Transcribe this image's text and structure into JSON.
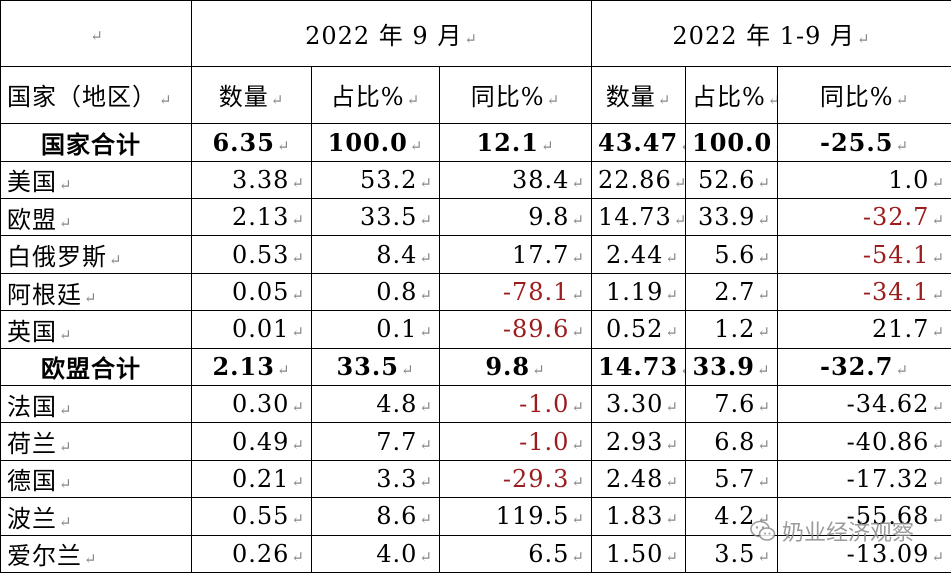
{
  "table": {
    "corner": "",
    "period_groups": [
      "2022 年 9 月",
      "2022 年 1-9 月"
    ],
    "columns": [
      "国家（地区）",
      "数量",
      "占比%",
      "同比%",
      "数量",
      "占比%",
      "同比%"
    ],
    "rows": [
      {
        "name": "国家合计",
        "subtotal": true,
        "cells": [
          "6.35",
          "100.0",
          "12.1",
          "43.47",
          "100.0",
          "-25.5"
        ],
        "neg": [
          false,
          false,
          false,
          false,
          false,
          false
        ]
      },
      {
        "name": "美国",
        "subtotal": false,
        "cells": [
          "3.38",
          "53.2",
          "38.4",
          "22.86",
          "52.6",
          "1.0"
        ],
        "neg": [
          false,
          false,
          false,
          false,
          false,
          false
        ]
      },
      {
        "name": "欧盟",
        "subtotal": false,
        "cells": [
          "2.13",
          "33.5",
          "9.8",
          "14.73",
          "33.9",
          "-32.7"
        ],
        "neg": [
          false,
          false,
          false,
          false,
          false,
          true
        ]
      },
      {
        "name": "白俄罗斯",
        "subtotal": false,
        "cells": [
          "0.53",
          "8.4",
          "17.7",
          "2.44",
          "5.6",
          "-54.1"
        ],
        "neg": [
          false,
          false,
          false,
          false,
          false,
          true
        ]
      },
      {
        "name": "阿根廷",
        "subtotal": false,
        "cells": [
          "0.05",
          "0.8",
          "-78.1",
          "1.19",
          "2.7",
          "-34.1"
        ],
        "neg": [
          false,
          false,
          true,
          false,
          false,
          true
        ]
      },
      {
        "name": "英国",
        "subtotal": false,
        "cells": [
          "0.01",
          "0.1",
          "-89.6",
          "0.52",
          "1.2",
          "21.7"
        ],
        "neg": [
          false,
          false,
          true,
          false,
          false,
          false
        ]
      },
      {
        "name": "欧盟合计",
        "subtotal": true,
        "cells": [
          "2.13",
          "33.5",
          "9.8",
          "14.73",
          "33.9",
          "-32.7"
        ],
        "neg": [
          false,
          false,
          false,
          false,
          false,
          false
        ]
      },
      {
        "name": "法国",
        "subtotal": false,
        "cells": [
          "0.30",
          "4.8",
          "-1.0",
          "3.30",
          "7.6",
          "-34.62"
        ],
        "neg": [
          false,
          false,
          true,
          false,
          false,
          false
        ]
      },
      {
        "name": "荷兰",
        "subtotal": false,
        "cells": [
          "0.49",
          "7.7",
          "-1.0",
          "2.93",
          "6.8",
          "-40.86"
        ],
        "neg": [
          false,
          false,
          true,
          false,
          false,
          false
        ]
      },
      {
        "name": "德国",
        "subtotal": false,
        "cells": [
          "0.21",
          "3.3",
          "-29.3",
          "2.48",
          "5.7",
          "-17.32"
        ],
        "neg": [
          false,
          false,
          true,
          false,
          false,
          false
        ]
      },
      {
        "name": "波兰",
        "subtotal": false,
        "cells": [
          "0.55",
          "8.6",
          "119.5",
          "1.83",
          "4.2",
          "-55.68"
        ],
        "neg": [
          false,
          false,
          false,
          false,
          false,
          false
        ]
      },
      {
        "name": "爱尔兰",
        "subtotal": false,
        "cells": [
          "0.26",
          "4.0",
          "6.5",
          "1.50",
          "3.5",
          "-13.09"
        ],
        "neg": [
          false,
          false,
          false,
          false,
          false,
          false
        ]
      }
    ]
  },
  "watermark": {
    "text": "奶业经济观察",
    "icon": "wechat-icon"
  },
  "colors": {
    "negative": "#9b1c1c",
    "border": "#000000",
    "watermark": "#8a8a8a"
  }
}
